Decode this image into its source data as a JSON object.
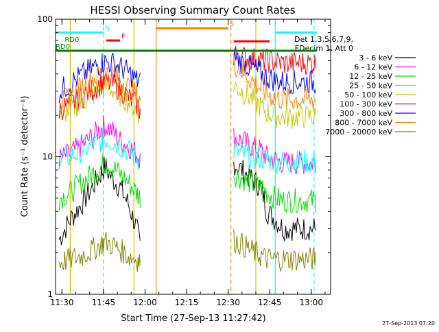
{
  "chart_data": {
    "type": "line",
    "title": "HESSI Observing Summary Count Rates",
    "xlabel": "Start Time (27-Sep-13 11:27:42)",
    "ylabel": "Count Rate (s⁻¹ detector⁻¹)",
    "y_scale": "log",
    "ylim": [
      1,
      100
    ],
    "xlim": [
      "11:27:42",
      "13:07:00"
    ],
    "x_ticks": [
      "11:30",
      "11:45",
      "12:00",
      "12:15",
      "12:30",
      "12:45",
      "13:00"
    ],
    "y_ticks": [
      "1",
      "10",
      "100"
    ],
    "grid": false,
    "legend_position": "right",
    "legend_header": [
      "Det 1,3,5,6,7,9,",
      "FDecim 1, Att 0"
    ],
    "timestamp": "27-Sep-2013 07:20",
    "series": [
      {
        "name": "3 - 6 keV",
        "color": "#000000",
        "x": [
          "11:29",
          "11:33",
          "11:37",
          "11:41",
          "11:44",
          "11:45.5",
          "11:48",
          "11:51",
          "11:54",
          "11:57",
          "11:58.5",
          "12:32",
          "12:35",
          "12:38",
          "12:40",
          "12:42",
          "12:44",
          "12:47",
          "12:50",
          "12:55",
          "13:00",
          "13:02"
        ],
        "y": [
          2.5,
          3.5,
          4.5,
          6,
          7.5,
          8.5,
          7,
          6,
          4.5,
          3,
          2.2,
          9,
          8,
          7,
          6.5,
          6,
          4,
          3.5,
          3,
          3,
          3,
          3
        ]
      },
      {
        "name": "6 - 12 keV",
        "color": "#ff00ff",
        "x": [
          "11:29",
          "11:33",
          "11:37",
          "11:41",
          "11:44",
          "11:45.5",
          "11:48",
          "11:51",
          "11:54",
          "11:57",
          "11:58.5",
          "12:32",
          "12:35",
          "12:38",
          "12:40",
          "12:42",
          "12:44",
          "12:47",
          "12:50",
          "12:55",
          "13:00",
          "13:02"
        ],
        "y": [
          9.5,
          10.5,
          12,
          14,
          16,
          17,
          15.5,
          13,
          12,
          10.5,
          9.5,
          14,
          13,
          12,
          11.5,
          11,
          10,
          9.5,
          9,
          9,
          9,
          9
        ]
      },
      {
        "name": "12 - 25 keV",
        "color": "#00dd00",
        "x": [
          "11:29",
          "11:33",
          "11:37",
          "11:41",
          "11:44",
          "11:45.5",
          "11:48",
          "11:51",
          "11:54",
          "11:57",
          "11:58.5",
          "12:32",
          "12:35",
          "12:38",
          "12:40",
          "12:42",
          "12:44",
          "12:47",
          "12:50",
          "12:55",
          "13:00",
          "13:02"
        ],
        "y": [
          5,
          5.5,
          6.5,
          7.5,
          8.5,
          9,
          8.5,
          7.5,
          6.5,
          5.5,
          5,
          7.5,
          7,
          6.5,
          6.2,
          6,
          5.5,
          5,
          4.8,
          4.8,
          4.8,
          4.8
        ]
      },
      {
        "name": "25 - 50 keV",
        "color": "#00ffff",
        "x": [
          "11:29",
          "11:33",
          "11:37",
          "11:41",
          "11:44",
          "11:45.5",
          "11:48",
          "11:51",
          "11:54",
          "11:57",
          "11:58.5",
          "12:32",
          "12:35",
          "12:38",
          "12:40",
          "12:42",
          "12:44",
          "12:47",
          "12:50",
          "12:55",
          "13:00",
          "13:02"
        ],
        "y": [
          9.5,
          10,
          11,
          12,
          13,
          13.5,
          13,
          12,
          11,
          10,
          9.5,
          11,
          10.5,
          10,
          9.8,
          9.7,
          9.5,
          9.3,
          9.2,
          9.2,
          9.2,
          9.2
        ]
      },
      {
        "name": "50 - 100 keV",
        "color": "#c8c800",
        "x": [
          "11:29",
          "11:33",
          "11:37",
          "11:41",
          "11:44",
          "11:45.5",
          "11:48",
          "11:51",
          "11:54",
          "11:57",
          "11:58.5",
          "12:32",
          "12:35",
          "12:38",
          "12:40",
          "12:42",
          "12:44",
          "12:47",
          "12:50",
          "12:55",
          "13:00",
          "13:02"
        ],
        "y": [
          20,
          22,
          25,
          28,
          31,
          32,
          31,
          28,
          25,
          22,
          20,
          33,
          30,
          27,
          25,
          23,
          21,
          20,
          19.5,
          19.5,
          19.5,
          19.5
        ]
      },
      {
        "name": "100 - 300 keV",
        "color": "#ff0000",
        "x": [
          "11:29",
          "11:33",
          "11:37",
          "11:41",
          "11:44",
          "11:45.5",
          "11:48",
          "11:51",
          "11:54",
          "11:57",
          "11:58.5",
          "12:32",
          "12:35",
          "12:38",
          "12:40",
          "12:42",
          "12:44",
          "12:47",
          "12:50",
          "12:55",
          "13:00",
          "13:02"
        ],
        "y": [
          22,
          24,
          27,
          31,
          34,
          35,
          34,
          31,
          27,
          24,
          21,
          55,
          53,
          52,
          51,
          50,
          50,
          49,
          48,
          48,
          48,
          48
        ]
      },
      {
        "name": "300 - 800 keV",
        "color": "#0000ff",
        "x": [
          "11:29",
          "11:33",
          "11:37",
          "11:41",
          "11:44",
          "11:45.5",
          "11:48",
          "11:51",
          "11:54",
          "11:57",
          "11:58.5",
          "12:32",
          "12:35",
          "12:38",
          "12:40",
          "12:42",
          "12:44",
          "12:47",
          "12:50",
          "12:55",
          "13:00",
          "13:02"
        ],
        "y": [
          30,
          34,
          39,
          44,
          48,
          49,
          48,
          45,
          41,
          36,
          34,
          55,
          48,
          45,
          43,
          40,
          38,
          36,
          35,
          35,
          35,
          35
        ]
      },
      {
        "name": "800 - 7000 keV",
        "color": "#ff8000",
        "x": [
          "11:29",
          "11:33",
          "11:37",
          "11:41",
          "11:44",
          "11:45.5",
          "11:48",
          "11:51",
          "11:54",
          "11:57",
          "11:58.5",
          "12:32",
          "12:35",
          "12:38",
          "12:40",
          "12:42",
          "12:44",
          "12:47",
          "12:50",
          "12:55",
          "13:00",
          "13:02"
        ],
        "y": [
          24,
          27,
          32,
          37,
          40,
          41,
          40,
          37,
          32,
          28,
          25,
          48,
          42,
          37,
          34,
          31,
          29,
          27,
          26,
          26,
          26,
          26
        ]
      },
      {
        "name": "7000 - 20000 keV",
        "color": "#808000",
        "x": [
          "11:29",
          "11:33",
          "11:37",
          "11:41",
          "11:44",
          "11:45.5",
          "11:48",
          "11:51",
          "11:54",
          "11:57",
          "11:58.5",
          "12:32",
          "12:35",
          "12:38",
          "12:40",
          "12:42",
          "12:44",
          "12:47",
          "12:50",
          "12:55",
          "13:00",
          "13:02"
        ],
        "y": [
          1.7,
          1.8,
          1.9,
          2.1,
          2.3,
          2.4,
          2.3,
          2.1,
          1.9,
          1.8,
          1.7,
          2.5,
          2.3,
          2.1,
          2,
          1.9,
          1.8,
          1.8,
          1.8,
          1.8,
          1.8,
          1.8
        ]
      }
    ],
    "annotations": [
      {
        "label": "N",
        "color": "#00ffff",
        "y": 80,
        "x_start": "11:27:42",
        "x_end": "11:45",
        "type": "bar"
      },
      {
        "label": "F",
        "color": "#ff0000",
        "y": 70,
        "x_start": "11:46",
        "x_end": "11:51",
        "type": "bar"
      },
      {
        "label": "S",
        "color": "#ff8000",
        "y": 86,
        "x_start": "12:04",
        "x_end": "12:30",
        "type": "bar"
      },
      {
        "label": "RD0",
        "color": "#008000",
        "y": 66,
        "x_start": "11:31",
        "x_end": "11:34",
        "type": "label"
      },
      {
        "label": "RD0",
        "color": "#008000",
        "y": 59,
        "x_start": "11:27:42",
        "x_end": "11:30",
        "type": "label"
      },
      {
        "label": "",
        "color": "#008000",
        "y": 59,
        "x_start": "11:27:42",
        "x_end": "13:02",
        "type": "bar"
      },
      {
        "label": "",
        "color": "#ff0000",
        "y": 69,
        "x_start": "12:32",
        "x_end": "12:45",
        "type": "bar"
      },
      {
        "label": "",
        "color": "#00ffff",
        "y": 80,
        "x_start": "12:47",
        "x_end": "13:02",
        "type": "bar"
      }
    ],
    "vertical_markers": [
      {
        "time": "11:33",
        "color": "#c8c800",
        "style": "solid"
      },
      {
        "time": "11:45",
        "color": "#00ffff",
        "style": "dashed"
      },
      {
        "time": "11:56",
        "color": "#c8c800",
        "style": "solid"
      },
      {
        "time": "12:04",
        "color": "#ff8000",
        "style": "solid"
      },
      {
        "time": "12:31",
        "color": "#ff8000",
        "style": "dashed"
      },
      {
        "time": "12:40",
        "color": "#c8c800",
        "style": "solid"
      },
      {
        "time": "12:47",
        "color": "#00ffff",
        "style": "solid"
      },
      {
        "time": "13:01",
        "color": "#00ffff",
        "style": "dashed"
      }
    ]
  }
}
